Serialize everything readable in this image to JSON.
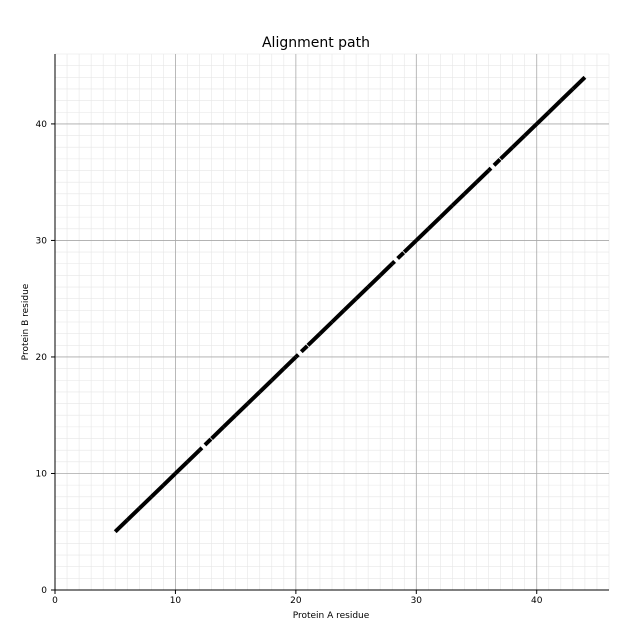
{
  "chart_data": {
    "type": "line",
    "title": "Alignment path",
    "xlabel": "Protein A residue",
    "ylabel": "Protein B residue",
    "xlim": [
      0,
      46
    ],
    "ylim": [
      0,
      46
    ],
    "x_ticks": [
      0,
      10,
      20,
      30,
      40
    ],
    "y_ticks": [
      0,
      10,
      20,
      30,
      40
    ],
    "x_tick_labels": [
      "0",
      "10",
      "20",
      "30",
      "40"
    ],
    "y_tick_labels": [
      "0",
      "10",
      "20",
      "30",
      "40"
    ],
    "grid": true,
    "minor_grid": true,
    "series": [
      {
        "color": "#000000",
        "x": [
          5,
          6,
          7,
          8,
          9,
          10,
          11,
          12,
          13,
          14,
          15,
          16,
          17,
          18,
          19,
          20,
          21,
          22,
          23,
          24,
          25,
          26,
          27,
          28,
          29,
          30,
          31,
          32,
          33,
          34,
          35,
          36,
          37,
          38,
          39,
          40,
          41,
          42,
          43,
          44
        ],
        "y": [
          5,
          6,
          7,
          8,
          9,
          10,
          11,
          12,
          13,
          14,
          15,
          16,
          17,
          18,
          19,
          20,
          21,
          22,
          23,
          24,
          25,
          26,
          27,
          28,
          29,
          30,
          31,
          32,
          33,
          34,
          35,
          36,
          37,
          38,
          39,
          40,
          41,
          42,
          43,
          44
        ],
        "gaps_after_x": [
          12,
          20,
          28,
          36
        ]
      }
    ]
  }
}
